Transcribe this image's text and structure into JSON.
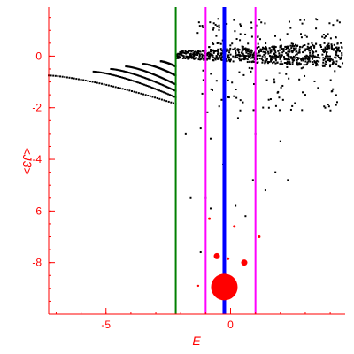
{
  "chart_data": {
    "type": "scatter",
    "xlabel": "E",
    "ylabel": "<J3>",
    "xlim": [
      -7.3,
      4.6
    ],
    "ylim": [
      -10,
      1.9
    ],
    "xticks": [
      -5,
      0
    ],
    "xtick_labels": [
      "-5",
      "0"
    ],
    "yticks": [
      0,
      -2,
      -4,
      -6,
      -8
    ],
    "ytick_labels": [
      "0",
      "-2",
      "-4",
      "-6",
      "-8"
    ],
    "grid": false,
    "colors": {
      "axes": "#ff0000",
      "points": "#000000",
      "red_points": "#ff0000",
      "green_line": "#008000",
      "magenta_line": "#ff00ff",
      "blue_line": "#0000ff"
    },
    "vertical_lines": [
      {
        "x": -2.2,
        "color": "#008000"
      },
      {
        "x": -1.0,
        "color": "#ff00ff"
      },
      {
        "x": -0.25,
        "color": "#0000ff",
        "thick": true
      },
      {
        "x": 1.0,
        "color": "#ff00ff"
      }
    ],
    "branches": [
      {
        "x_start": -7.3,
        "x_end": -2.2,
        "y_start": -0.75,
        "y_end": -1.85
      },
      {
        "x_start": -5.5,
        "x_end": -2.2,
        "y_start": -0.6,
        "y_end": -1.6
      },
      {
        "x_start": -4.8,
        "x_end": -2.2,
        "y_start": -0.5,
        "y_end": -1.35
      },
      {
        "x_start": -4.2,
        "x_end": -2.2,
        "y_start": -0.4,
        "y_end": -1.1
      },
      {
        "x_start": -3.5,
        "x_end": -2.2,
        "y_start": -0.3,
        "y_end": -0.75
      },
      {
        "x_start": -2.8,
        "x_end": -2.2,
        "y_start": -0.2,
        "y_end": -0.4
      }
    ],
    "cloud": {
      "x_range": [
        -2.2,
        4.5
      ],
      "y_center": 0.05,
      "y_spread": 0.35
    },
    "scattered_points": [
      [
        -1.8,
        -3.0
      ],
      [
        -1.2,
        -2.8
      ],
      [
        -0.8,
        -3.2
      ],
      [
        0.3,
        -2.4
      ],
      [
        1.0,
        -3.0
      ],
      [
        -0.3,
        -4.2
      ],
      [
        0.9,
        -4.8
      ],
      [
        1.8,
        -4.5
      ],
      [
        2.3,
        -4.8
      ],
      [
        -1.0,
        -5.5
      ],
      [
        0.2,
        -5.8
      ],
      [
        1.4,
        -5.2
      ],
      [
        -1.6,
        -5.5
      ],
      [
        0.6,
        -6.2
      ],
      [
        -1.2,
        -7.6
      ],
      [
        -0.8,
        -5.9
      ],
      [
        2.0,
        -3.3
      ],
      [
        3.0,
        -1.5
      ],
      [
        3.8,
        -2.0
      ]
    ],
    "red_points": [
      {
        "x": -0.85,
        "y": -6.3,
        "size": 1.5
      },
      {
        "x": 0.15,
        "y": -6.6,
        "size": 1.5
      },
      {
        "x": 1.15,
        "y": -7.0,
        "size": 1.5
      },
      {
        "x": -0.55,
        "y": -7.75,
        "size": 3.5
      },
      {
        "x": 0.55,
        "y": -8.0,
        "size": 3.5
      },
      {
        "x": -0.1,
        "y": -7.85,
        "size": 1.5
      },
      {
        "x": -1.3,
        "y": -8.9,
        "size": 1.2
      },
      {
        "x": -0.25,
        "y": -8.95,
        "size": 15
      }
    ]
  }
}
